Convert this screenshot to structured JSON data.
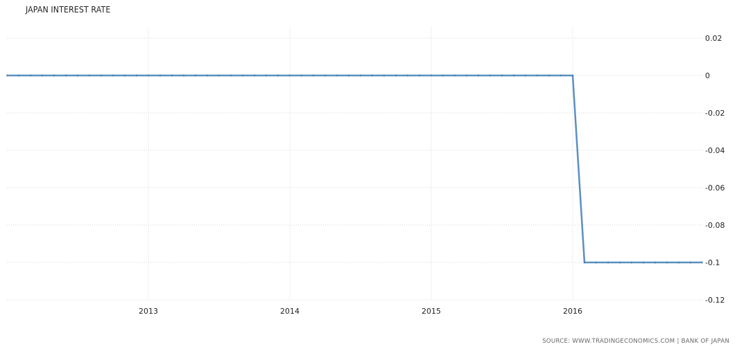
{
  "chart_data": {
    "type": "line",
    "title": "JAPAN INTEREST RATE",
    "source": "SOURCE: WWW.TRADINGECONOMICS.COM | BANK OF JAPAN",
    "xlabel": "",
    "ylabel": "",
    "x_ticks": [
      "2013",
      "2014",
      "2015",
      "2016"
    ],
    "y_ticks": [
      "0.02",
      "0",
      "-0.02",
      "-0.04",
      "-0.06",
      "-0.08",
      "-0.1",
      "-0.12"
    ],
    "ylim": [
      -0.12,
      0.02
    ],
    "xlim": [
      "2012-01",
      "2016-12"
    ],
    "grid": true,
    "series": [
      {
        "color": "#5b8fc0",
        "points": [
          {
            "x": "2012-01",
            "y": 0
          },
          {
            "x": "2016-01",
            "y": 0
          },
          {
            "x": "2016-02",
            "y": -0.1
          },
          {
            "x": "2016-12",
            "y": -0.1
          }
        ]
      }
    ]
  }
}
